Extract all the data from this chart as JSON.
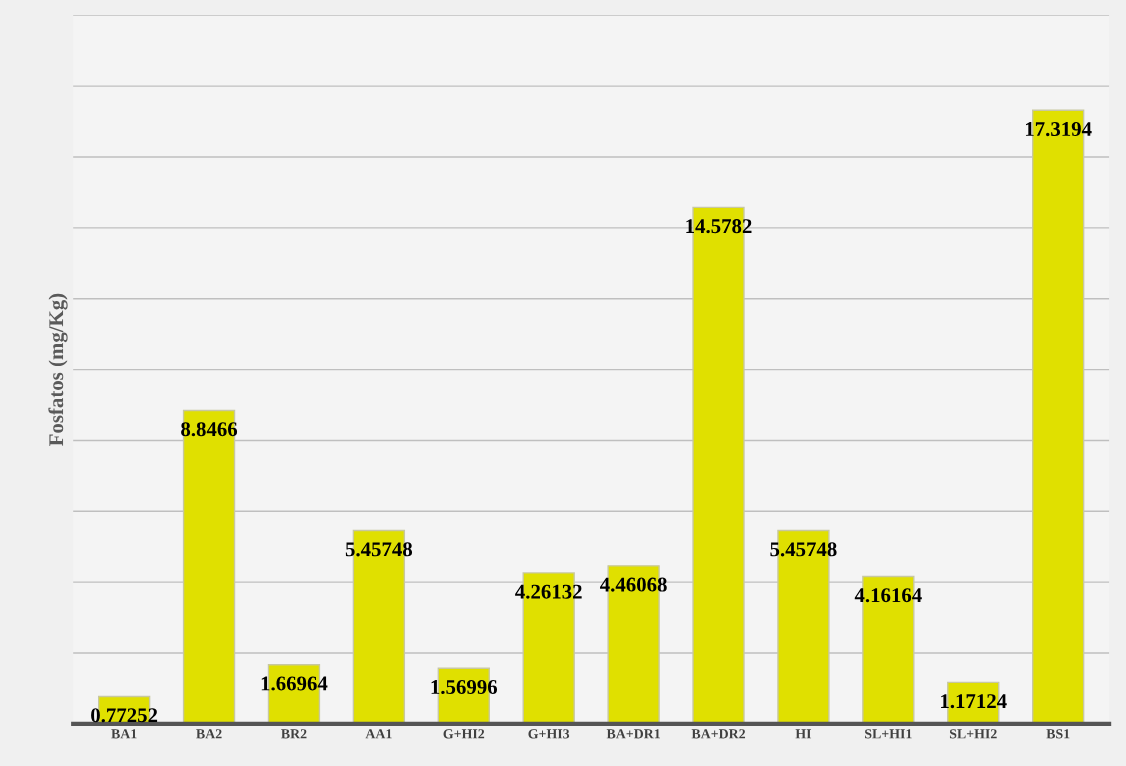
{
  "chart_data": {
    "type": "bar",
    "ylabel": "Fosfatos (mg/Kg)",
    "categories": [
      "BA1",
      "BA2",
      "BR2",
      "AA1",
      "G+HI2",
      "G+HI3",
      "BA+DR1",
      "BA+DR2",
      "HI",
      "SL+HI1",
      "SL+HI2",
      "BS1"
    ],
    "values": [
      0.77252,
      8.8466,
      1.66964,
      5.45748,
      1.56996,
      4.26132,
      4.46068,
      14.5782,
      5.45748,
      4.16164,
      1.17124,
      17.3194
    ],
    "color": "#e0e000",
    "ylim": [
      0,
      20
    ],
    "yticks": [
      {
        "value": 0,
        "label": null
      },
      {
        "value": 2,
        "label": null
      },
      {
        "value": 4,
        "label": null
      },
      {
        "value": 6,
        "label": null
      },
      {
        "value": 8,
        "label": null
      },
      {
        "value": 10,
        "label": null
      },
      {
        "value": 12,
        "label": null
      },
      {
        "value": 14,
        "label": null
      },
      {
        "value": 16,
        "label": null
      },
      {
        "value": 18,
        "label": null
      },
      {
        "value": 20,
        "label": null
      }
    ],
    "grid": "y",
    "data_labels": true,
    "tick_labels": "x"
  }
}
